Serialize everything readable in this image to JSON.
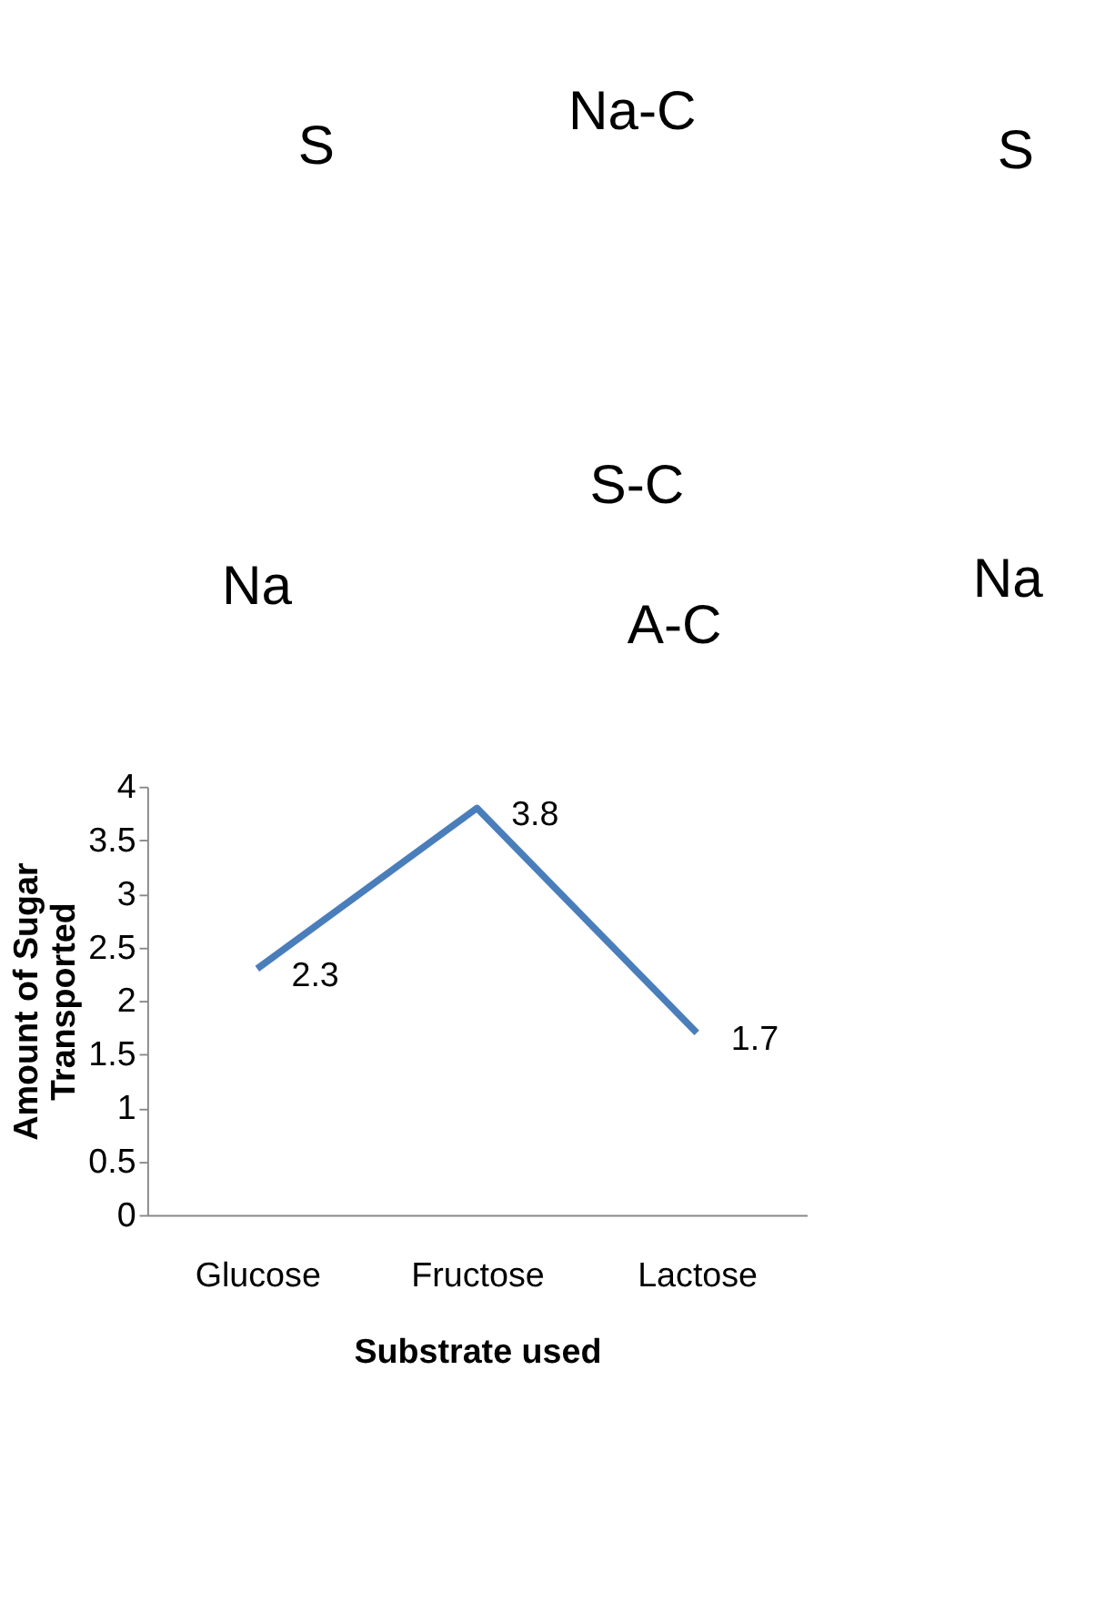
{
  "chart_data": [
    {
      "type": "other",
      "annotations": [
        "S",
        "Na-C",
        "S",
        "Na",
        "S-C",
        "Na",
        "A-C"
      ]
    },
    {
      "type": "line",
      "categories": [
        "Glucose",
        "Fructose",
        "Lactose"
      ],
      "values": [
        2.3,
        3.8,
        1.7
      ],
      "color": "#4a7ebb",
      "xlabel": "Substrate used",
      "ylabel": "Amount of Sugar Transported",
      "ylim": [
        0,
        4
      ],
      "yticks": [
        0,
        0.5,
        1,
        1.5,
        2,
        2.5,
        3,
        3.5,
        4
      ],
      "data_labels": true,
      "marker": "none"
    }
  ]
}
